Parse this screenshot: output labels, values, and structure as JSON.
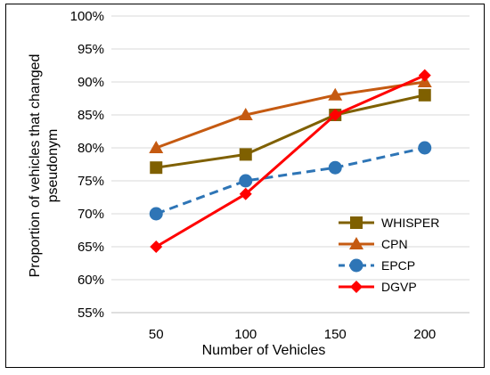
{
  "chart_data": {
    "type": "line",
    "title": "",
    "xlabel": "Number of Vehicles",
    "ylabel_lines": [
      "Proportion of vehicles that changed",
      "pseudonym"
    ],
    "categories": [
      "50",
      "100",
      "150",
      "200"
    ],
    "ylim": [
      55,
      100
    ],
    "y_ticks": [
      55,
      60,
      65,
      70,
      75,
      80,
      85,
      90,
      95,
      100
    ],
    "y_tick_labels": [
      "55%",
      "60%",
      "65%",
      "70%",
      "75%",
      "80%",
      "85%",
      "90%",
      "95%",
      "100%"
    ],
    "grid": "horizontal",
    "legend_position": "bottom-right",
    "series": [
      {
        "name": "WHISPER",
        "values": [
          77,
          79,
          85,
          88
        ],
        "color": "#7f6000",
        "marker": "square",
        "dash": "solid"
      },
      {
        "name": "CPN",
        "values": [
          80,
          85,
          88,
          90
        ],
        "color": "#c55a11",
        "marker": "triangle",
        "dash": "solid"
      },
      {
        "name": "EPCP",
        "values": [
          70,
          75,
          77,
          80
        ],
        "color": "#2e75b6",
        "marker": "circle",
        "dash": "dashed"
      },
      {
        "name": "DGVP",
        "values": [
          65,
          73,
          85,
          91
        ],
        "color": "#ff0000",
        "marker": "diamond",
        "dash": "solid"
      }
    ]
  }
}
